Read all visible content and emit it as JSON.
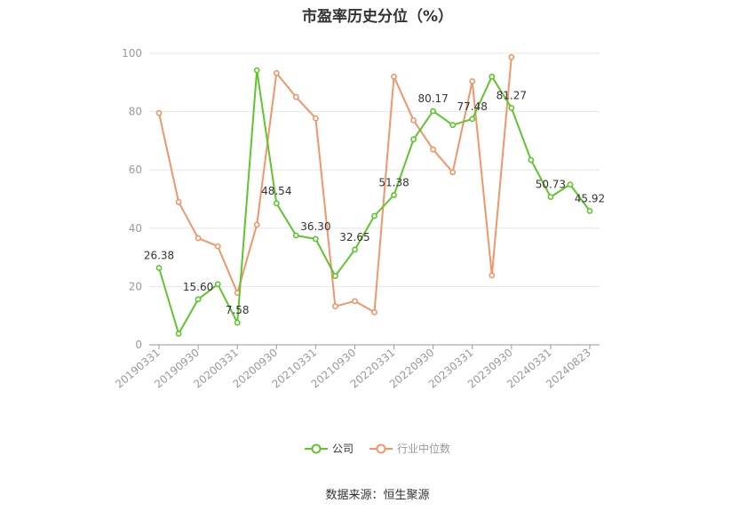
{
  "chart_data": {
    "type": "line",
    "title": "市盈率历史分位（%）",
    "xlabel": "",
    "ylabel": "",
    "ylim": [
      0,
      100
    ],
    "yticks": [
      0,
      20,
      40,
      60,
      80,
      100
    ],
    "x": [
      "20190331",
      "20190630",
      "20190930",
      "20191231",
      "20200331",
      "20200630",
      "20200930",
      "20201231",
      "20210331",
      "20210630",
      "20210930",
      "20211231",
      "20220331",
      "20220630",
      "20220930",
      "20221231",
      "20230331",
      "20230630",
      "20230930",
      "20231231",
      "20240331",
      "20240630",
      "20240823"
    ],
    "xtick_labels": [
      "20190331",
      "20190930",
      "20200331",
      "20200930",
      "20210331",
      "20210930",
      "20220331",
      "20220930",
      "20230331",
      "20230930",
      "20240331",
      "20240823"
    ],
    "grid": true,
    "legend_position": "bottom",
    "series": [
      {
        "name": "公司",
        "color": "#5fc52e",
        "values": [
          26.38,
          3.8,
          15.6,
          20.8,
          7.58,
          94.2,
          48.54,
          37.5,
          36.3,
          23.6,
          32.65,
          44.2,
          51.38,
          70.5,
          80.17,
          75.4,
          77.48,
          92.0,
          81.27,
          63.4,
          50.73,
          55.0,
          45.92
        ],
        "labels": [
          "26.38",
          "",
          "15.60",
          "",
          "7.58",
          "",
          "48.54",
          "",
          "36.30",
          "",
          "32.65",
          "",
          "51.38",
          "",
          "80.17",
          "",
          "77.48",
          "",
          "81.27",
          "",
          "50.73",
          "",
          "45.92"
        ]
      },
      {
        "name": "行业中位数",
        "color": "#f0966a",
        "values": [
          79.5,
          49.0,
          36.6,
          33.8,
          17.8,
          41.2,
          93.2,
          85.0,
          77.7,
          13.2,
          15.0,
          11.2,
          92.0,
          77.0,
          67.0,
          59.2,
          90.4,
          23.8,
          98.7,
          null,
          null,
          null,
          null
        ]
      }
    ]
  },
  "source_text": "数据来源：恒生聚源"
}
